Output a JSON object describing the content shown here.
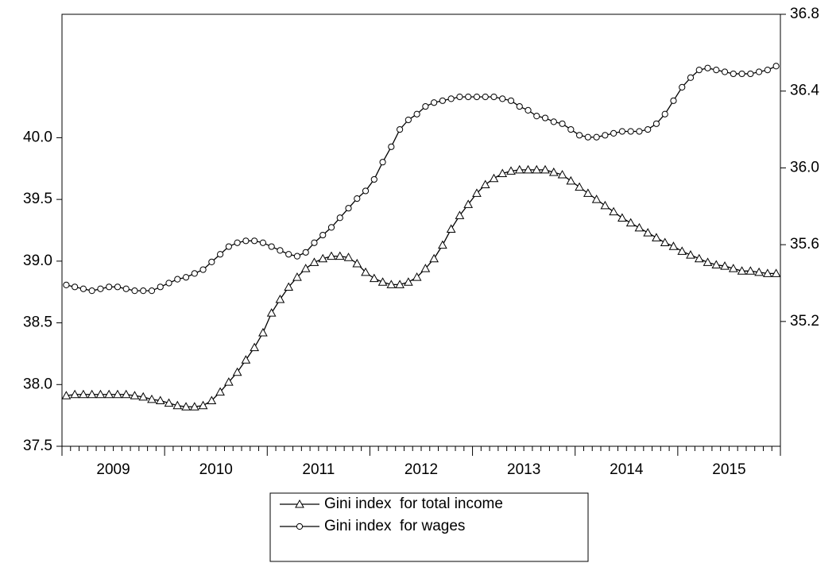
{
  "chart_data": {
    "type": "line",
    "categories": [
      "2009",
      null,
      null,
      null,
      null,
      null,
      null,
      null,
      null,
      null,
      null,
      null,
      "2010",
      null,
      null,
      null,
      null,
      null,
      null,
      null,
      null,
      null,
      null,
      null,
      "2011",
      null,
      null,
      null,
      null,
      null,
      null,
      null,
      null,
      null,
      null,
      null,
      "2012",
      null,
      null,
      null,
      null,
      null,
      null,
      null,
      null,
      null,
      null,
      null,
      "2013",
      null,
      null,
      null,
      null,
      null,
      null,
      null,
      null,
      null,
      null,
      null,
      "2014",
      null,
      null,
      null,
      null,
      null,
      null,
      null,
      null,
      null,
      null,
      null,
      "2015",
      null,
      null,
      null,
      null,
      null,
      null,
      null,
      null,
      null,
      null,
      null
    ],
    "series": [
      {
        "name": "Gini index  for total income",
        "color": "#000000",
        "marker": "triangle",
        "axis": "y",
        "values": [
          37.91,
          37.92,
          37.92,
          37.92,
          37.92,
          37.92,
          37.92,
          37.92,
          37.91,
          37.9,
          37.88,
          37.87,
          37.85,
          37.83,
          37.82,
          37.82,
          37.83,
          37.87,
          37.94,
          38.02,
          38.1,
          38.2,
          38.3,
          38.42,
          38.58,
          38.69,
          38.79,
          38.87,
          38.94,
          38.99,
          39.02,
          39.04,
          39.04,
          39.03,
          38.98,
          38.91,
          38.86,
          38.83,
          38.81,
          38.81,
          38.83,
          38.87,
          38.94,
          39.02,
          39.13,
          39.26,
          39.37,
          39.46,
          39.55,
          39.62,
          39.67,
          39.71,
          39.73,
          39.74,
          39.74,
          39.74,
          39.74,
          39.72,
          39.7,
          39.65,
          39.6,
          39.55,
          39.5,
          39.45,
          39.4,
          39.35,
          39.31,
          39.27,
          39.23,
          39.19,
          39.15,
          39.12,
          39.08,
          39.05,
          39.02,
          38.99,
          38.97,
          38.96,
          38.94,
          38.92,
          38.92,
          38.91,
          38.9,
          38.9
        ]
      },
      {
        "name": "Gini index  for wages",
        "color": "#000000",
        "marker": "circle",
        "axis": "y2",
        "values": [
          35.39,
          35.38,
          35.37,
          35.36,
          35.37,
          35.38,
          35.38,
          35.37,
          35.36,
          35.36,
          35.36,
          35.38,
          35.4,
          35.42,
          35.43,
          35.45,
          35.47,
          35.51,
          35.55,
          35.59,
          35.61,
          35.62,
          35.62,
          35.61,
          35.59,
          35.57,
          35.55,
          35.54,
          35.56,
          35.61,
          35.65,
          35.69,
          35.74,
          35.79,
          35.84,
          35.88,
          35.94,
          36.03,
          36.11,
          36.2,
          36.25,
          36.28,
          36.32,
          36.34,
          36.35,
          36.36,
          36.37,
          36.37,
          36.37,
          36.37,
          36.37,
          36.36,
          36.35,
          36.32,
          36.3,
          36.27,
          36.26,
          36.24,
          36.23,
          36.2,
          36.17,
          36.16,
          36.16,
          36.17,
          36.18,
          36.19,
          36.19,
          36.19,
          36.2,
          36.23,
          36.28,
          36.35,
          36.42,
          36.47,
          36.51,
          36.52,
          36.51,
          36.5,
          36.49,
          36.49,
          36.49,
          36.5,
          36.51,
          36.53
        ]
      }
    ],
    "ylim": [
      37.5,
      41.0
    ],
    "yticks": [
      37.5,
      {
        "value": 38,
        "label": "38.0"
      },
      38.5,
      {
        "value": 39,
        "label": "39.0"
      },
      39.5,
      {
        "value": 40,
        "label": "40.0"
      }
    ],
    "y2lim": [
      34.55,
      36.8
    ],
    "y2ticks": [
      35.2,
      35.6,
      {
        "value": 36,
        "label": "36.0"
      },
      36.4,
      36.8
    ],
    "grid": false,
    "legend": "bottom"
  }
}
